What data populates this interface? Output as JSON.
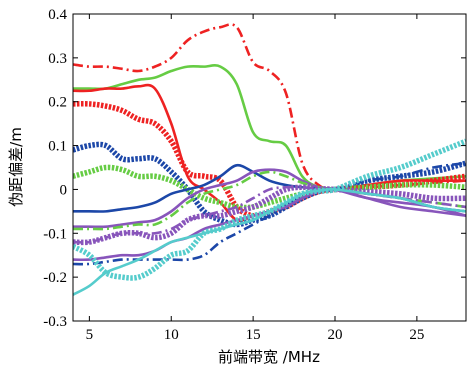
{
  "chart_data": {
    "type": "line",
    "title": "",
    "xlabel": "前端带宽 /MHz",
    "ylabel": "伪距偏差/m",
    "xlim": [
      4,
      28
    ],
    "ylim": [
      -0.3,
      0.4
    ],
    "xticks": [
      5,
      10,
      15,
      20,
      25
    ],
    "yticks": [
      -0.3,
      -0.2,
      -0.1,
      0,
      0.1,
      0.2,
      0.3,
      0.4
    ],
    "xtick_labels": [
      "5",
      "10",
      "15",
      "20",
      "25"
    ],
    "ytick_labels": [
      "-0.3",
      "-0.2",
      "-0.1",
      "0",
      "0.1",
      "0.2",
      "0.3",
      "0.4"
    ],
    "grid": false,
    "legend": "none",
    "series": [
      {
        "color": "#ee2222",
        "style": "dashdot",
        "x": [
          4,
          5,
          6,
          7,
          8,
          9,
          10,
          11,
          12,
          13,
          14,
          15,
          16,
          17,
          18,
          19,
          20,
          22,
          24,
          26,
          28
        ],
        "y": [
          0.285,
          0.28,
          0.28,
          0.275,
          0.27,
          0.28,
          0.3,
          0.34,
          0.36,
          0.37,
          0.37,
          0.29,
          0.27,
          0.22,
          0.06,
          0.01,
          0.0,
          0.005,
          0.01,
          0.015,
          0.02
        ]
      },
      {
        "color": "#66cc44",
        "style": "solid",
        "x": [
          4,
          5,
          6,
          7,
          8,
          9,
          10,
          11,
          12,
          13,
          14,
          15,
          16,
          17,
          18,
          19,
          20,
          22,
          24,
          26,
          28
        ],
        "y": [
          0.23,
          0.23,
          0.23,
          0.24,
          0.25,
          0.255,
          0.27,
          0.28,
          0.28,
          0.28,
          0.24,
          0.13,
          0.11,
          0.1,
          0.03,
          0.005,
          0.0,
          0.01,
          0.02,
          0.025,
          0.03
        ]
      },
      {
        "color": "#ee2222",
        "style": "solid",
        "x": [
          4,
          5,
          6,
          7,
          8,
          9,
          10,
          11,
          12,
          13,
          14,
          15,
          16,
          17,
          18,
          19,
          20,
          22,
          24,
          26,
          28
        ],
        "y": [
          0.225,
          0.225,
          0.23,
          0.23,
          0.235,
          0.23,
          0.15,
          0.03,
          0.0,
          -0.03,
          -0.07,
          -0.06,
          -0.05,
          -0.04,
          -0.02,
          -0.005,
          0.0,
          0.01,
          0.02,
          0.02,
          0.02
        ]
      },
      {
        "color": "#ee2222",
        "style": "marker",
        "x": [
          4,
          5,
          6,
          7,
          8,
          9,
          10,
          11,
          12,
          13,
          14,
          15,
          16,
          17,
          18,
          19,
          20,
          22,
          24,
          26,
          28
        ],
        "y": [
          0.195,
          0.195,
          0.19,
          0.18,
          0.16,
          0.15,
          0.11,
          0.04,
          0.03,
          0.02,
          -0.04,
          -0.06,
          -0.05,
          -0.04,
          -0.02,
          -0.005,
          0.0,
          0.005,
          0.01,
          0.02,
          0.03
        ]
      },
      {
        "color": "#1c47a8",
        "style": "marker",
        "x": [
          4,
          5,
          6,
          7,
          8,
          9,
          10,
          11,
          12,
          13,
          14,
          15,
          16,
          17,
          18,
          19,
          20,
          22,
          24,
          26,
          28
        ],
        "y": [
          0.09,
          0.1,
          0.1,
          0.07,
          0.07,
          0.07,
          0.04,
          0.0,
          -0.05,
          -0.07,
          -0.08,
          -0.07,
          -0.06,
          -0.04,
          -0.02,
          -0.005,
          0.0,
          0.02,
          0.03,
          0.04,
          0.06
        ]
      },
      {
        "color": "#66cc44",
        "style": "marker",
        "x": [
          4,
          5,
          6,
          7,
          8,
          9,
          10,
          11,
          12,
          13,
          14,
          15,
          16,
          17,
          18,
          19,
          20,
          22,
          24,
          26,
          28
        ],
        "y": [
          0.03,
          0.04,
          0.05,
          0.045,
          0.03,
          0.03,
          0.02,
          0.0,
          -0.02,
          -0.03,
          -0.04,
          -0.04,
          -0.03,
          -0.02,
          -0.01,
          -0.003,
          0.0,
          0.005,
          0.01,
          0.01,
          0.005
        ]
      },
      {
        "color": "#1c47a8",
        "style": "solid",
        "x": [
          4,
          5,
          6,
          7,
          8,
          9,
          10,
          11,
          12,
          13,
          14,
          15,
          16,
          17,
          18,
          19,
          20,
          22,
          24,
          26,
          28
        ],
        "y": [
          -0.05,
          -0.05,
          -0.05,
          -0.045,
          -0.04,
          -0.03,
          -0.01,
          0.0,
          0.01,
          0.03,
          0.055,
          0.04,
          0.02,
          0.01,
          0.005,
          0.002,
          0.0,
          -0.01,
          -0.02,
          -0.04,
          -0.05
        ]
      },
      {
        "color": "#8855bb",
        "style": "solid",
        "x": [
          4,
          5,
          6,
          7,
          8,
          9,
          10,
          11,
          12,
          13,
          14,
          15,
          16,
          17,
          18,
          19,
          20,
          22,
          24,
          26,
          28
        ],
        "y": [
          -0.085,
          -0.085,
          -0.085,
          -0.08,
          -0.075,
          -0.07,
          -0.05,
          -0.02,
          0.0,
          0.01,
          0.02,
          0.04,
          0.045,
          0.04,
          0.02,
          0.005,
          0.0,
          -0.02,
          -0.03,
          -0.04,
          -0.06
        ]
      },
      {
        "color": "#66cc44",
        "style": "dashdot",
        "x": [
          4,
          5,
          6,
          7,
          8,
          9,
          10,
          11,
          12,
          13,
          14,
          15,
          16,
          17,
          18,
          19,
          20,
          22,
          24,
          26,
          28
        ],
        "y": [
          -0.09,
          -0.09,
          -0.09,
          -0.085,
          -0.08,
          -0.08,
          -0.06,
          -0.03,
          -0.01,
          0.0,
          0.01,
          0.03,
          0.04,
          0.03,
          0.015,
          0.005,
          0.0,
          -0.01,
          -0.02,
          -0.03,
          -0.04
        ]
      },
      {
        "color": "#8855bb",
        "style": "dashdot",
        "x": [
          4,
          5,
          6,
          7,
          8,
          9,
          10,
          11,
          12,
          13,
          14,
          15,
          16,
          17,
          18,
          19,
          20,
          22,
          24,
          26,
          28
        ],
        "y": [
          -0.12,
          -0.12,
          -0.11,
          -0.1,
          -0.1,
          -0.1,
          -0.09,
          -0.07,
          -0.06,
          -0.05,
          -0.04,
          -0.02,
          0.0,
          0.005,
          0.005,
          0.002,
          0.0,
          -0.01,
          -0.02,
          -0.03,
          -0.04
        ]
      },
      {
        "color": "#8855bb",
        "style": "marker",
        "x": [
          4,
          5,
          6,
          7,
          8,
          9,
          10,
          11,
          12,
          13,
          14,
          15,
          16,
          17,
          18,
          19,
          20,
          22,
          24,
          26,
          28
        ],
        "y": [
          -0.12,
          -0.12,
          -0.11,
          -0.1,
          -0.1,
          -0.11,
          -0.1,
          -0.07,
          -0.06,
          -0.06,
          -0.05,
          -0.04,
          -0.02,
          0.0,
          0.005,
          0.002,
          0.0,
          -0.005,
          -0.01,
          -0.02,
          -0.02
        ]
      },
      {
        "color": "#1c47a8",
        "style": "dashdot",
        "x": [
          4,
          5,
          6,
          7,
          8,
          9,
          10,
          11,
          12,
          13,
          14,
          15,
          16,
          17,
          18,
          19,
          20,
          22,
          24,
          26,
          28
        ],
        "y": [
          -0.17,
          -0.17,
          -0.165,
          -0.16,
          -0.16,
          -0.16,
          -0.16,
          -0.16,
          -0.15,
          -0.12,
          -0.1,
          -0.08,
          -0.06,
          -0.04,
          -0.02,
          -0.005,
          0.0,
          0.02,
          0.03,
          0.05,
          0.06
        ]
      },
      {
        "color": "#8855bb",
        "style": "solid",
        "x": [
          4,
          5,
          6,
          7,
          8,
          9,
          10,
          11,
          12,
          13,
          14,
          15,
          16,
          17,
          18,
          19,
          20,
          22,
          24,
          26,
          28
        ],
        "y": [
          -0.16,
          -0.16,
          -0.155,
          -0.15,
          -0.15,
          -0.14,
          -0.12,
          -0.11,
          -0.09,
          -0.08,
          -0.07,
          -0.06,
          -0.05,
          -0.04,
          -0.02,
          -0.005,
          0.0,
          -0.02,
          -0.04,
          -0.05,
          -0.06
        ]
      },
      {
        "color": "#55cccc",
        "style": "marker",
        "x": [
          4,
          5,
          6,
          7,
          8,
          9,
          10,
          11,
          12,
          13,
          14,
          15,
          16,
          17,
          18,
          19,
          20,
          22,
          24,
          26,
          28
        ],
        "y": [
          -0.13,
          -0.15,
          -0.19,
          -0.2,
          -0.2,
          -0.18,
          -0.15,
          -0.14,
          -0.1,
          -0.09,
          -0.07,
          -0.06,
          -0.05,
          -0.03,
          -0.01,
          -0.003,
          0.0,
          0.03,
          0.05,
          0.08,
          0.11
        ]
      },
      {
        "color": "#55cccc",
        "style": "solid",
        "x": [
          4,
          5,
          6,
          7,
          8,
          9,
          10,
          11,
          12,
          13,
          14,
          15,
          16,
          17,
          18,
          19,
          20,
          22,
          24,
          26,
          28
        ],
        "y": [
          -0.24,
          -0.22,
          -0.19,
          -0.175,
          -0.16,
          -0.14,
          -0.12,
          -0.11,
          -0.1,
          -0.09,
          -0.08,
          -0.07,
          -0.05,
          -0.03,
          -0.01,
          -0.003,
          0.0,
          -0.01,
          -0.02,
          -0.04,
          -0.05
        ]
      }
    ]
  }
}
